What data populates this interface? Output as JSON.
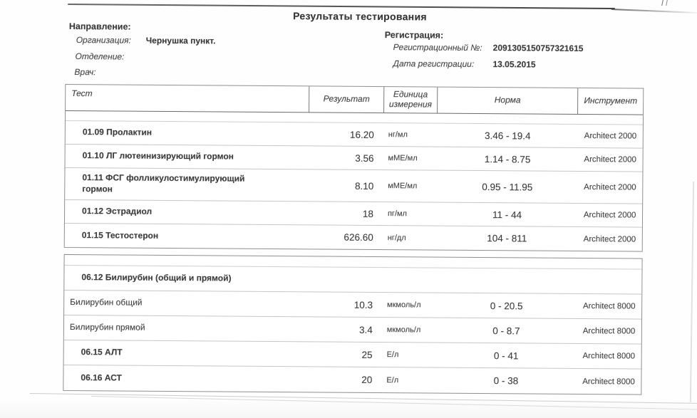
{
  "title": "Результаты тестирования",
  "referral": {
    "heading": "Направление:",
    "organization_label": "Организация:",
    "organization_value": "Чернушка пункт.",
    "department_label": "Отделение:",
    "department_value": "",
    "doctor_label": "Врач:",
    "doctor_value": ""
  },
  "registration": {
    "heading": "Регистрация:",
    "number_label": "Регистрационный №:",
    "number_value": "2091305150757321615",
    "date_label": "Дата регистрации:",
    "date_value": "13.05.2015"
  },
  "table": {
    "headers": {
      "test": "Тест",
      "result": "Результат",
      "unit": "Единица\nизмерения",
      "norm": "Норма",
      "instrument": "Инструмент"
    }
  },
  "sections": [
    {
      "rows": [
        {
          "test": "01.09 Пролактин",
          "result": "16.20",
          "unit": "нг/мл",
          "norm": "3.46 - 19.4",
          "instrument": "Architect 2000"
        },
        {
          "test": "01.10 ЛГ лютеинизирующий гормон",
          "result": "3.56",
          "unit": "мМЕ/мл",
          "norm": "1.14 - 8.75",
          "instrument": "Architect 2000"
        },
        {
          "test": "01.11 ФСГ фолликулостимулирующий\nгормон",
          "result": "8.10",
          "unit": "мМЕ/мл",
          "norm": "0.95 - 11.95",
          "instrument": "Architect 2000"
        },
        {
          "test": "01.12 Эстрадиол",
          "result": "18",
          "unit": "пг/мл",
          "norm": "11 - 44",
          "instrument": "Architect 2000"
        },
        {
          "test": "01.15 Тестостерон",
          "result": "626.60",
          "unit": "нг/дл",
          "norm": "104 - 811",
          "instrument": "Architect 2000"
        }
      ]
    },
    {
      "rows": [
        {
          "test": "06.12 Билирубин (общий и прямой)",
          "result": "",
          "unit": "",
          "norm": "",
          "instrument": ""
        },
        {
          "test": "Билирубин общий",
          "result": "10.3",
          "unit": "мкмоль/л",
          "norm": "0 - 20.5",
          "instrument": "Architect 8000"
        },
        {
          "test": "Билирубин прямой",
          "result": "3.4",
          "unit": "мкмоль/л",
          "norm": "0 - 8.7",
          "instrument": "Architect 8000"
        },
        {
          "test": "06.15 АЛТ",
          "result": "25",
          "unit": "Е/л",
          "norm": "0 - 41",
          "instrument": "Architect 8000"
        },
        {
          "test": "06.16 АСТ",
          "result": "20",
          "unit": "Е/л",
          "norm": "0 - 38",
          "instrument": "Architect 8000"
        }
      ]
    }
  ]
}
